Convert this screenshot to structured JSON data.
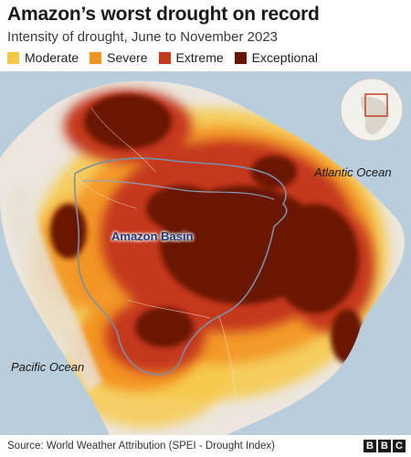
{
  "title": "Amazon’s worst drought on record",
  "subtitle": "Intensity of drought, June to November 2023",
  "legend": [
    {
      "label": "Moderate",
      "color": "#f7c948"
    },
    {
      "label": "Severe",
      "color": "#f39422"
    },
    {
      "label": "Extreme",
      "color": "#c4381c"
    },
    {
      "label": "Exceptional",
      "color": "#6b1206"
    }
  ],
  "map": {
    "ocean_color": "#b9cddd",
    "land_color": "#ece6dd",
    "labels": {
      "atlantic": "Atlantic Ocean",
      "pacific": "Pacific Ocean",
      "basin": "Amazon Basin"
    }
  },
  "footer": {
    "source": "Source: World Weather Attribution (SPEI - Drought Index)",
    "logo": [
      "B",
      "B",
      "C"
    ]
  }
}
